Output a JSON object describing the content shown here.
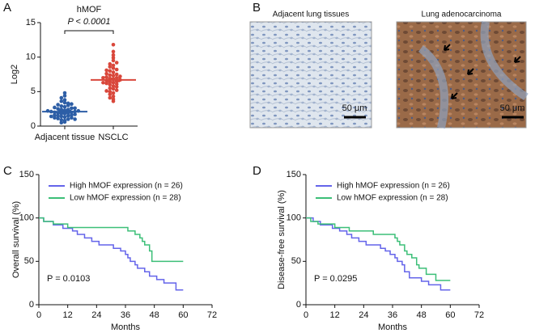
{
  "chart_data": [
    {
      "type": "strip",
      "panel_label": "A",
      "title": "hMOF",
      "y_label": "Log2",
      "annotation": "P < 0.0001",
      "categories": [
        "Adjacent tissue",
        "NSCLC"
      ],
      "colors": [
        "#2d5ea6",
        "#d9473b"
      ],
      "values": [
        [
          0.6,
          0.8,
          0.9,
          1.0,
          1.1,
          1.2,
          1.2,
          1.3,
          1.4,
          1.5,
          1.5,
          1.6,
          1.6,
          1.7,
          1.8,
          1.8,
          1.9,
          1.9,
          2.0,
          2.0,
          2.1,
          2.1,
          2.2,
          2.2,
          2.3,
          2.4,
          2.4,
          2.5,
          2.6,
          2.7,
          2.8,
          2.9,
          3.0,
          3.1,
          3.2,
          3.4,
          3.6,
          3.8,
          4.1,
          4.4,
          4.8,
          0.5,
          1.0,
          1.4,
          2.6,
          3.3
        ],
        [
          3.6,
          3.9,
          4.1,
          4.3,
          4.6,
          4.8,
          5.0,
          5.2,
          5.4,
          5.5,
          5.7,
          5.8,
          6.0,
          6.1,
          6.2,
          6.3,
          6.4,
          6.5,
          6.6,
          6.7,
          6.8,
          6.9,
          7.0,
          7.1,
          7.2,
          7.3,
          7.4,
          7.5,
          7.6,
          7.8,
          8.0,
          8.2,
          8.4,
          8.6,
          8.8,
          9.0,
          9.2,
          9.5,
          9.9,
          10.3,
          10.8,
          11.8,
          6.3,
          7.0,
          5.1,
          8.1
        ]
      ],
      "means": [
        2.1,
        6.7
      ],
      "errors": [
        0.15,
        0.25
      ],
      "ylim": [
        0,
        15
      ],
      "yticks": [
        0,
        5,
        10,
        15
      ]
    },
    {
      "type": "km",
      "panel_label": "C",
      "y_label": "Overall survival (%)",
      "x_label": "Months",
      "annotation": "P = 0.0103",
      "series": [
        {
          "name": "High hMOF expression (n = 26)",
          "color": "#6464ea",
          "x": [
            0,
            2,
            6,
            10,
            14,
            16,
            19,
            22,
            25,
            31,
            34,
            36,
            37,
            38,
            40,
            41,
            44,
            46,
            49,
            52,
            57,
            60
          ],
          "values": [
            100,
            96,
            92,
            88,
            85,
            81,
            77,
            73,
            69,
            65,
            62,
            58,
            54,
            50,
            46,
            42,
            38,
            33,
            29,
            25,
            17,
            17
          ]
        },
        {
          "name": "Low hMOF expression (n = 28)",
          "color": "#3cbf78",
          "x": [
            0,
            2,
            6,
            12,
            37,
            40,
            42,
            43,
            44,
            46,
            47,
            60
          ],
          "values": [
            100,
            96,
            93,
            89,
            85,
            81,
            77,
            73,
            69,
            62,
            50,
            50
          ]
        }
      ],
      "xlim": [
        0,
        72
      ],
      "xticks": [
        0,
        12,
        24,
        36,
        48,
        60,
        72
      ],
      "ylim": [
        0,
        150
      ],
      "yticks": [
        0,
        50,
        100,
        150
      ]
    },
    {
      "type": "km",
      "panel_label": "D",
      "y_label": "Disease-free survival (%)",
      "x_label": "Months",
      "annotation": "P = 0.0295",
      "series": [
        {
          "name": "High hMOF expression (n = 26)",
          "color": "#6464ea",
          "x": [
            0,
            3,
            6,
            11,
            14,
            17,
            19,
            22,
            25,
            31,
            33,
            35,
            37,
            38,
            40,
            41,
            43,
            48,
            51,
            56,
            60
          ],
          "values": [
            100,
            96,
            92,
            88,
            85,
            81,
            77,
            73,
            69,
            65,
            62,
            58,
            54,
            50,
            46,
            38,
            31,
            27,
            23,
            17,
            17
          ]
        },
        {
          "name": "Low hMOF expression (n = 28)",
          "color": "#3cbf78",
          "x": [
            0,
            2,
            5,
            12,
            18,
            28,
            37,
            38,
            39,
            41,
            42,
            44,
            46,
            47,
            50,
            54,
            57,
            60
          ],
          "values": [
            100,
            96,
            93,
            89,
            85,
            81,
            77,
            73,
            69,
            62,
            58,
            54,
            46,
            42,
            35,
            28,
            28,
            28
          ]
        }
      ],
      "xlim": [
        0,
        72
      ],
      "xticks": [
        0,
        12,
        24,
        36,
        48,
        60,
        72
      ],
      "ylim": [
        0,
        150
      ],
      "yticks": [
        0,
        50,
        100,
        150
      ]
    }
  ],
  "image_panel": {
    "panel_label": "B",
    "images": [
      {
        "title": "Adjacent lung tissues",
        "scale_label": "50 μm"
      },
      {
        "title": "Lung adenocarcinoma",
        "scale_label": "50 μm"
      }
    ]
  }
}
